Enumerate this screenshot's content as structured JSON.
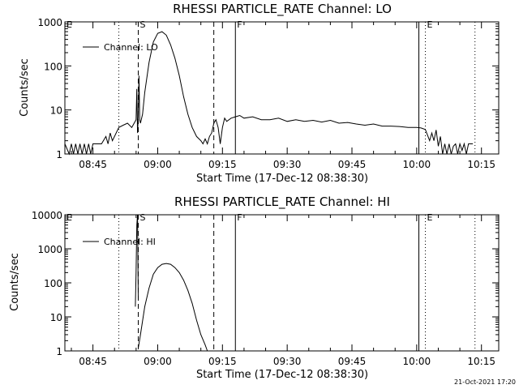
{
  "footer_timestamp": "21-Oct-2021 17:20",
  "chart_data": [
    {
      "type": "line",
      "title": "RHESSI PARTICLE_RATE Channel: LO",
      "xlabel": "Start Time (17-Dec-12 08:38:30)",
      "ylabel": "Counts/sec",
      "yscale": "log",
      "xlim": [
        "08:38:30",
        "10:19:00"
      ],
      "ylim": [
        1,
        1000
      ],
      "x_ticks": [
        "08:45",
        "09:00",
        "09:15",
        "09:30",
        "09:45",
        "10:00",
        "10:15"
      ],
      "y_ticks": [
        "1",
        "10",
        "100",
        "1000"
      ],
      "legend": "Channel: LO",
      "legend_position": "top-left",
      "markers": [
        {
          "label": "E",
          "time": "08:38:30",
          "style": "none"
        },
        {
          "label": "",
          "time": "08:51:00",
          "style": "dotted"
        },
        {
          "label": "S",
          "time": "08:55:30",
          "style": "dashed"
        },
        {
          "label": "",
          "time": "09:13:00",
          "style": "dashed"
        },
        {
          "label": "F",
          "time": "09:18:00",
          "style": "solid"
        },
        {
          "label": "",
          "time": "10:00:30",
          "style": "solid"
        },
        {
          "label": "E",
          "time": "10:02:00",
          "style": "dotted"
        },
        {
          "label": "",
          "time": "10:13:30",
          "style": "dotted"
        }
      ],
      "series": [
        {
          "x": [
            "08:38:30",
            "08:39:30",
            "08:40:00",
            "08:40:30",
            "08:41:00",
            "08:41:30",
            "08:42:00",
            "08:42:30",
            "08:43:00",
            "08:43:30",
            "08:44:00",
            "08:44:30",
            "08:45:00",
            "08:46:00",
            "08:47:00",
            "08:48:00",
            "08:48:30",
            "08:49:00",
            "08:49:30",
            "08:50:00",
            "08:51:00",
            "08:52:00",
            "08:53:00",
            "08:54:00",
            "08:55:00",
            "08:55:10",
            "08:55:20",
            "08:55:30",
            "08:55:40",
            "08:55:50",
            "08:56:00",
            "08:56:30",
            "08:57:00",
            "08:58:00",
            "08:59:00",
            "09:00:00",
            "09:01:00",
            "09:02:00",
            "09:03:00",
            "09:04:00",
            "09:05:00",
            "09:06:00",
            "09:07:00",
            "09:08:00",
            "09:09:00",
            "09:10:00",
            "09:10:30",
            "09:11:00",
            "09:11:30",
            "09:12:00",
            "09:12:30",
            "09:13:00",
            "09:13:30",
            "09:14:00",
            "09:14:30",
            "09:15:00",
            "09:15:30",
            "09:16:00",
            "09:17:00",
            "09:18:00",
            "09:19:00",
            "09:20:00",
            "09:22:00",
            "09:24:00",
            "09:26:00",
            "09:28:00",
            "09:30:00",
            "09:32:00",
            "09:34:00",
            "09:36:00",
            "09:38:00",
            "09:40:00",
            "09:42:00",
            "09:44:00",
            "09:46:00",
            "09:48:00",
            "09:50:00",
            "09:52:00",
            "09:54:00",
            "09:56:00",
            "09:58:00",
            "10:00:00",
            "10:01:00",
            "10:02:00",
            "10:03:00",
            "10:03:30",
            "10:04:00",
            "10:04:30",
            "10:05:00",
            "10:05:30",
            "10:06:00",
            "10:06:30",
            "10:07:00",
            "10:07:30",
            "10:08:00",
            "10:08:30",
            "10:09:00",
            "10:09:30",
            "10:10:00",
            "10:10:30",
            "10:11:00",
            "10:11:30",
            "10:12:00",
            "10:13:00"
          ],
          "y": [
            1.7,
            1,
            1.7,
            1,
            1.7,
            1,
            1.7,
            1,
            1.7,
            1,
            1.7,
            1,
            1.7,
            1.7,
            1.7,
            2.5,
            1.7,
            3,
            2,
            2.5,
            4,
            4.5,
            5,
            4,
            6,
            30,
            3,
            7,
            60,
            6,
            5,
            8,
            25,
            120,
            350,
            550,
            600,
            500,
            300,
            150,
            60,
            20,
            8,
            4,
            2.5,
            2,
            1.7,
            2.2,
            1.7,
            2.5,
            3,
            5,
            6,
            4,
            1.7,
            4,
            6.5,
            5.5,
            6.5,
            7,
            7.5,
            6.5,
            7,
            6,
            6,
            6.5,
            5.5,
            6,
            5.5,
            5.8,
            5.3,
            5.8,
            5,
            5.2,
            4.8,
            4.5,
            4.8,
            4.3,
            4.3,
            4.2,
            4,
            4,
            3.9,
            3.6,
            2,
            3,
            2,
            3.5,
            1.5,
            2.5,
            1,
            1.7,
            1,
            1.7,
            1,
            1.5,
            1.7,
            1,
            1.7,
            1.2,
            1.7,
            1,
            1.7,
            1.7
          ]
        }
      ]
    },
    {
      "type": "line",
      "title": "RHESSI PARTICLE_RATE Channel: HI",
      "xlabel": "Start Time (17-Dec-12 08:38:30)",
      "ylabel": "Counts/sec",
      "yscale": "log",
      "xlim": [
        "08:38:30",
        "10:19:00"
      ],
      "ylim": [
        1,
        10000
      ],
      "x_ticks": [
        "08:45",
        "09:00",
        "09:15",
        "09:30",
        "09:45",
        "10:00",
        "10:15"
      ],
      "y_ticks": [
        "1",
        "10",
        "100",
        "1000",
        "10000"
      ],
      "legend": "Channel: HI",
      "legend_position": "top-left",
      "markers": [
        {
          "label": "E",
          "time": "08:38:30",
          "style": "none"
        },
        {
          "label": "",
          "time": "08:51:00",
          "style": "dotted"
        },
        {
          "label": "S",
          "time": "08:55:30",
          "style": "dashed"
        },
        {
          "label": "",
          "time": "09:13:00",
          "style": "dashed"
        },
        {
          "label": "F",
          "time": "09:18:00",
          "style": "solid"
        },
        {
          "label": "",
          "time": "10:00:30",
          "style": "solid"
        },
        {
          "label": "E",
          "time": "10:02:00",
          "style": "dotted"
        },
        {
          "label": "",
          "time": "10:13:30",
          "style": "dotted"
        }
      ],
      "series": [
        {
          "x": [
            "08:54:50",
            "08:55:00",
            "08:55:10",
            "08:55:20",
            "08:55:30"
          ],
          "y": [
            20,
            200,
            5000,
            10000,
            30
          ]
        },
        {
          "x": [
            "08:55:30",
            "08:56:00",
            "08:57:00",
            "08:58:00",
            "08:59:00",
            "09:00:00",
            "09:01:00",
            "09:02:00",
            "09:03:00",
            "09:04:00",
            "09:05:00",
            "09:06:00",
            "09:07:00",
            "09:08:00",
            "09:09:00",
            "09:10:00",
            "09:11:00",
            "09:11:30"
          ],
          "y": [
            1.2,
            3,
            20,
            70,
            180,
            280,
            350,
            370,
            350,
            280,
            200,
            120,
            60,
            25,
            8,
            3,
            1.5,
            1
          ]
        }
      ]
    }
  ]
}
